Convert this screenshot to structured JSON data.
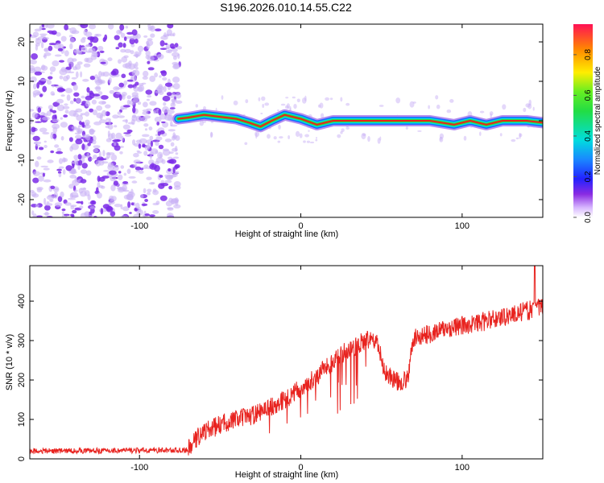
{
  "title": "S196.2026.010.14.55.C22",
  "colors": {
    "speckle": "#7b2be8",
    "speckle_light": "#c9b2f5",
    "snr_line": "#e8231f",
    "track_core": "#e8231f",
    "track_mid": "#33dd33",
    "track_outer": "#1a66ff"
  },
  "chart_data": [
    {
      "type": "heatmap",
      "name": "spectrogram",
      "xlabel": "Height of straight line (km)",
      "ylabel": "Frequency (Hz)",
      "xlim": [
        -168,
        150
      ],
      "ylim": [
        -24.5,
        24.5
      ],
      "xticks": [
        -100,
        0,
        100
      ],
      "xtick_labels": [
        "-100",
        "0",
        "100"
      ],
      "yticks": [
        -20,
        -10,
        0,
        10,
        20
      ],
      "ytick_labels": [
        "-20",
        "-10",
        "0",
        "10",
        "20"
      ],
      "noise_region_x": [
        -168,
        -75
      ],
      "track": [
        {
          "x": -76,
          "f": 0.5
        },
        {
          "x": -70,
          "f": 0.8
        },
        {
          "x": -60,
          "f": 1.5
        },
        {
          "x": -50,
          "f": 1.0
        },
        {
          "x": -40,
          "f": 0.5
        },
        {
          "x": -32,
          "f": -0.5
        },
        {
          "x": -25,
          "f": -1.5
        },
        {
          "x": -18,
          "f": 0.0
        },
        {
          "x": -10,
          "f": 1.5
        },
        {
          "x": 0,
          "f": 0.5
        },
        {
          "x": 10,
          "f": -1.0
        },
        {
          "x": 20,
          "f": 0.0
        },
        {
          "x": 30,
          "f": 0.0
        },
        {
          "x": 40,
          "f": 0.0
        },
        {
          "x": 60,
          "f": 0.0
        },
        {
          "x": 80,
          "f": 0.0
        },
        {
          "x": 95,
          "f": -1.0
        },
        {
          "x": 105,
          "f": 0.0
        },
        {
          "x": 115,
          "f": -1.0
        },
        {
          "x": 125,
          "f": 0.0
        },
        {
          "x": 140,
          "f": 0.0
        },
        {
          "x": 150,
          "f": -0.5
        }
      ],
      "colorbar": {
        "label": "Normalized spectral amplitude",
        "range": [
          0,
          0.95
        ],
        "ticks": [
          0.0,
          0.2,
          0.4,
          0.6,
          0.8
        ],
        "tick_labels": [
          "0.0",
          "0.2",
          "0.4",
          "0.6",
          "0.8"
        ]
      }
    },
    {
      "type": "line",
      "name": "snr",
      "xlabel": "Height of straight line (km)",
      "ylabel": "SNR (10 * v/v)",
      "xlim": [
        -168,
        150
      ],
      "ylim": [
        0,
        490
      ],
      "xticks": [
        -100,
        0,
        100
      ],
      "xtick_labels": [
        "-100",
        "0",
        "100"
      ],
      "yticks": [
        0,
        100,
        200,
        300,
        400
      ],
      "ytick_labels": [
        "0",
        "100",
        "200",
        "300",
        "400"
      ],
      "trend": [
        {
          "x": -168,
          "y": 20
        },
        {
          "x": -70,
          "y": 22
        },
        {
          "x": -62,
          "y": 65
        },
        {
          "x": -45,
          "y": 95
        },
        {
          "x": -30,
          "y": 110
        },
        {
          "x": -10,
          "y": 150
        },
        {
          "x": 10,
          "y": 210
        },
        {
          "x": 25,
          "y": 265
        },
        {
          "x": 40,
          "y": 300
        },
        {
          "x": 47,
          "y": 300
        },
        {
          "x": 52,
          "y": 220
        },
        {
          "x": 60,
          "y": 195
        },
        {
          "x": 66,
          "y": 200
        },
        {
          "x": 70,
          "y": 305
        },
        {
          "x": 90,
          "y": 330
        },
        {
          "x": 110,
          "y": 345
        },
        {
          "x": 130,
          "y": 365
        },
        {
          "x": 150,
          "y": 385
        }
      ],
      "peak": {
        "x": 145,
        "y": 490
      },
      "noise_amplitude": 35
    }
  ]
}
